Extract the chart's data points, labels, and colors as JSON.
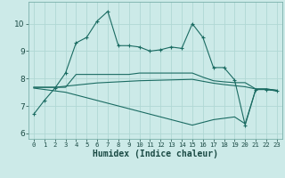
{
  "title": "",
  "xlabel": "Humidex (Indice chaleur)",
  "background_color": "#cceae8",
  "grid_color": "#b0d8d4",
  "line_color": "#1a6b62",
  "xlim": [
    -0.5,
    23.5
  ],
  "ylim": [
    5.8,
    10.8
  ],
  "xticks": [
    0,
    1,
    2,
    3,
    4,
    5,
    6,
    7,
    8,
    9,
    10,
    11,
    12,
    13,
    14,
    15,
    16,
    17,
    18,
    19,
    20,
    21,
    22,
    23
  ],
  "yticks": [
    6,
    7,
    8,
    9,
    10
  ],
  "line1_x": [
    0,
    1,
    2,
    3,
    4,
    5,
    6,
    7,
    8,
    9,
    10,
    11,
    12,
    13,
    14,
    15,
    16,
    17,
    18,
    19,
    20,
    21,
    22,
    23
  ],
  "line1_y": [
    6.7,
    7.2,
    7.65,
    8.2,
    9.3,
    9.5,
    10.1,
    10.45,
    9.2,
    9.2,
    9.15,
    9.0,
    9.05,
    9.15,
    9.1,
    10.0,
    9.5,
    8.4,
    8.4,
    7.95,
    6.3,
    7.6,
    7.6,
    7.55
  ],
  "line2_x": [
    0,
    1,
    2,
    3,
    4,
    5,
    6,
    7,
    8,
    9,
    10,
    11,
    12,
    13,
    14,
    15,
    16,
    17,
    18,
    19,
    20,
    21,
    22,
    23
  ],
  "line2_y": [
    7.68,
    7.68,
    7.68,
    7.68,
    8.15,
    8.15,
    8.15,
    8.15,
    8.15,
    8.15,
    8.2,
    8.2,
    8.2,
    8.2,
    8.2,
    8.2,
    8.05,
    7.92,
    7.88,
    7.85,
    7.85,
    7.62,
    7.62,
    7.57
  ],
  "line3_x": [
    0,
    1,
    2,
    3,
    4,
    5,
    6,
    7,
    8,
    9,
    10,
    11,
    12,
    13,
    14,
    15,
    16,
    17,
    18,
    19,
    20,
    21,
    22,
    23
  ],
  "line3_y": [
    7.68,
    7.68,
    7.68,
    7.72,
    7.76,
    7.8,
    7.84,
    7.86,
    7.88,
    7.9,
    7.92,
    7.93,
    7.94,
    7.95,
    7.96,
    7.97,
    7.9,
    7.83,
    7.78,
    7.74,
    7.7,
    7.62,
    7.62,
    7.57
  ],
  "line4_x": [
    0,
    1,
    2,
    3,
    4,
    5,
    6,
    7,
    8,
    9,
    10,
    11,
    12,
    13,
    14,
    15,
    16,
    17,
    18,
    19,
    20,
    21,
    22,
    23
  ],
  "line4_y": [
    7.65,
    7.6,
    7.55,
    7.5,
    7.4,
    7.3,
    7.2,
    7.1,
    7.0,
    6.9,
    6.8,
    6.7,
    6.6,
    6.5,
    6.4,
    6.3,
    6.4,
    6.5,
    6.55,
    6.6,
    6.35,
    7.6,
    7.6,
    7.55
  ]
}
